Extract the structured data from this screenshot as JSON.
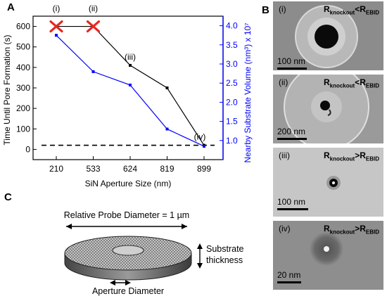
{
  "panel_letters": {
    "a": "A",
    "b": "B",
    "c": "C"
  },
  "chart_data": {
    "type": "line",
    "categories": [
      "210",
      "533",
      "624",
      "819",
      "899"
    ],
    "xlabel": "SiN Aperture Size (nm)",
    "ylabel_left": "Time Until Pore Formation (s)",
    "ylabel_right": "Nearby Substrate Volume (nm³) x 10⁷",
    "ylim_left": [
      -50,
      650
    ],
    "ylim_right": [
      0.5,
      4.25
    ],
    "yticks_left": [
      "0",
      "100",
      "200",
      "300",
      "400",
      "500",
      "600"
    ],
    "yticks_right": [
      "1.0",
      "1.5",
      "2.0",
      "2.5",
      "3.0",
      "3.5",
      "4.0"
    ],
    "grid": false,
    "series": [
      {
        "axis": "left",
        "color": "#000000",
        "values": [
          600,
          600,
          410,
          300,
          20
        ]
      },
      {
        "axis": "right",
        "color": "#0000ff",
        "values": [
          3.75,
          2.8,
          2.45,
          1.3,
          0.85
        ]
      }
    ],
    "failed_markers": {
      "color": "#e8261f",
      "indices": [
        0,
        1
      ],
      "values": [
        600,
        600
      ]
    },
    "baseline": {
      "value": 20,
      "style": "dashed"
    },
    "annotations": [
      {
        "text": "(i)",
        "index": 0
      },
      {
        "text": "(ii)",
        "index": 1
      },
      {
        "text": "(iii)",
        "index": 2
      },
      {
        "text": "(iv)",
        "index": 4
      }
    ]
  },
  "micrographs": [
    {
      "label": "(i)",
      "r1": "R",
      "s1": "knockout",
      "op": "<",
      "r2": "R",
      "s2": "EBID",
      "scale": "100 nm"
    },
    {
      "label": "(ii)",
      "r1": "R",
      "s1": "knockout",
      "op": "<",
      "r2": "R",
      "s2": "EBID",
      "scale": "200 nm"
    },
    {
      "label": "(iii)",
      "r1": "R",
      "s1": "knockout",
      "op": ">",
      "r2": "R",
      "s2": "EBID",
      "scale": "100 nm"
    },
    {
      "label": "(iv)",
      "r1": "R",
      "s1": "knockout",
      "op": ">",
      "r2": "R",
      "s2": "EBID",
      "scale": "20 nm"
    }
  ],
  "schematic": {
    "probe_label": "Relative Probe Diameter = 1 µm",
    "thickness_line1": "Substrate",
    "thickness_line2": "thickness",
    "aperture_label": "Aperture Diameter"
  }
}
